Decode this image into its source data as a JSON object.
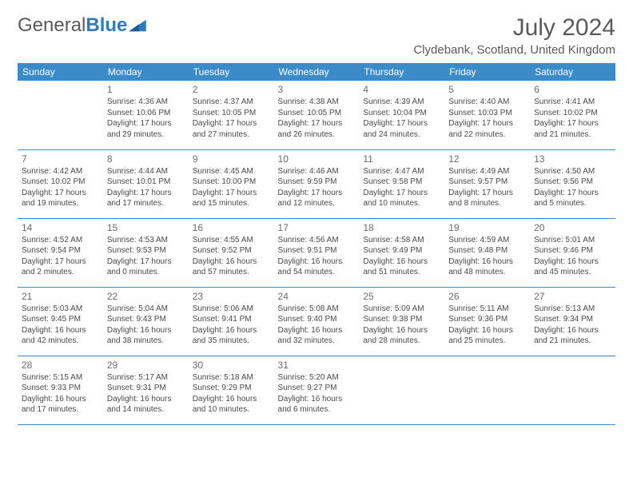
{
  "logo": {
    "part1": "General",
    "part2": "Blue"
  },
  "title": "July 2024",
  "location": "Clydebank, Scotland, United Kingdom",
  "colors": {
    "header_bg": "#3b8bc9",
    "header_text": "#ffffff",
    "border": "#3b8bc9",
    "text": "#4a4a4a",
    "title_text": "#5a5a5a",
    "logo_blue": "#2f7bbf"
  },
  "weekdays": [
    "Sunday",
    "Monday",
    "Tuesday",
    "Wednesday",
    "Thursday",
    "Friday",
    "Saturday"
  ],
  "weeks": [
    [
      {
        "day": "",
        "sunrise": "",
        "sunset": "",
        "daylight1": "",
        "daylight2": ""
      },
      {
        "day": "1",
        "sunrise": "Sunrise: 4:36 AM",
        "sunset": "Sunset: 10:06 PM",
        "daylight1": "Daylight: 17 hours",
        "daylight2": "and 29 minutes."
      },
      {
        "day": "2",
        "sunrise": "Sunrise: 4:37 AM",
        "sunset": "Sunset: 10:05 PM",
        "daylight1": "Daylight: 17 hours",
        "daylight2": "and 27 minutes."
      },
      {
        "day": "3",
        "sunrise": "Sunrise: 4:38 AM",
        "sunset": "Sunset: 10:05 PM",
        "daylight1": "Daylight: 17 hours",
        "daylight2": "and 26 minutes."
      },
      {
        "day": "4",
        "sunrise": "Sunrise: 4:39 AM",
        "sunset": "Sunset: 10:04 PM",
        "daylight1": "Daylight: 17 hours",
        "daylight2": "and 24 minutes."
      },
      {
        "day": "5",
        "sunrise": "Sunrise: 4:40 AM",
        "sunset": "Sunset: 10:03 PM",
        "daylight1": "Daylight: 17 hours",
        "daylight2": "and 22 minutes."
      },
      {
        "day": "6",
        "sunrise": "Sunrise: 4:41 AM",
        "sunset": "Sunset: 10:02 PM",
        "daylight1": "Daylight: 17 hours",
        "daylight2": "and 21 minutes."
      }
    ],
    [
      {
        "day": "7",
        "sunrise": "Sunrise: 4:42 AM",
        "sunset": "Sunset: 10:02 PM",
        "daylight1": "Daylight: 17 hours",
        "daylight2": "and 19 minutes."
      },
      {
        "day": "8",
        "sunrise": "Sunrise: 4:44 AM",
        "sunset": "Sunset: 10:01 PM",
        "daylight1": "Daylight: 17 hours",
        "daylight2": "and 17 minutes."
      },
      {
        "day": "9",
        "sunrise": "Sunrise: 4:45 AM",
        "sunset": "Sunset: 10:00 PM",
        "daylight1": "Daylight: 17 hours",
        "daylight2": "and 15 minutes."
      },
      {
        "day": "10",
        "sunrise": "Sunrise: 4:46 AM",
        "sunset": "Sunset: 9:59 PM",
        "daylight1": "Daylight: 17 hours",
        "daylight2": "and 12 minutes."
      },
      {
        "day": "11",
        "sunrise": "Sunrise: 4:47 AM",
        "sunset": "Sunset: 9:58 PM",
        "daylight1": "Daylight: 17 hours",
        "daylight2": "and 10 minutes."
      },
      {
        "day": "12",
        "sunrise": "Sunrise: 4:49 AM",
        "sunset": "Sunset: 9:57 PM",
        "daylight1": "Daylight: 17 hours",
        "daylight2": "and 8 minutes."
      },
      {
        "day": "13",
        "sunrise": "Sunrise: 4:50 AM",
        "sunset": "Sunset: 9:56 PM",
        "daylight1": "Daylight: 17 hours",
        "daylight2": "and 5 minutes."
      }
    ],
    [
      {
        "day": "14",
        "sunrise": "Sunrise: 4:52 AM",
        "sunset": "Sunset: 9:54 PM",
        "daylight1": "Daylight: 17 hours",
        "daylight2": "and 2 minutes."
      },
      {
        "day": "15",
        "sunrise": "Sunrise: 4:53 AM",
        "sunset": "Sunset: 9:53 PM",
        "daylight1": "Daylight: 17 hours",
        "daylight2": "and 0 minutes."
      },
      {
        "day": "16",
        "sunrise": "Sunrise: 4:55 AM",
        "sunset": "Sunset: 9:52 PM",
        "daylight1": "Daylight: 16 hours",
        "daylight2": "and 57 minutes."
      },
      {
        "day": "17",
        "sunrise": "Sunrise: 4:56 AM",
        "sunset": "Sunset: 9:51 PM",
        "daylight1": "Daylight: 16 hours",
        "daylight2": "and 54 minutes."
      },
      {
        "day": "18",
        "sunrise": "Sunrise: 4:58 AM",
        "sunset": "Sunset: 9:49 PM",
        "daylight1": "Daylight: 16 hours",
        "daylight2": "and 51 minutes."
      },
      {
        "day": "19",
        "sunrise": "Sunrise: 4:59 AM",
        "sunset": "Sunset: 9:48 PM",
        "daylight1": "Daylight: 16 hours",
        "daylight2": "and 48 minutes."
      },
      {
        "day": "20",
        "sunrise": "Sunrise: 5:01 AM",
        "sunset": "Sunset: 9:46 PM",
        "daylight1": "Daylight: 16 hours",
        "daylight2": "and 45 minutes."
      }
    ],
    [
      {
        "day": "21",
        "sunrise": "Sunrise: 5:03 AM",
        "sunset": "Sunset: 9:45 PM",
        "daylight1": "Daylight: 16 hours",
        "daylight2": "and 42 minutes."
      },
      {
        "day": "22",
        "sunrise": "Sunrise: 5:04 AM",
        "sunset": "Sunset: 9:43 PM",
        "daylight1": "Daylight: 16 hours",
        "daylight2": "and 38 minutes."
      },
      {
        "day": "23",
        "sunrise": "Sunrise: 5:06 AM",
        "sunset": "Sunset: 9:41 PM",
        "daylight1": "Daylight: 16 hours",
        "daylight2": "and 35 minutes."
      },
      {
        "day": "24",
        "sunrise": "Sunrise: 5:08 AM",
        "sunset": "Sunset: 9:40 PM",
        "daylight1": "Daylight: 16 hours",
        "daylight2": "and 32 minutes."
      },
      {
        "day": "25",
        "sunrise": "Sunrise: 5:09 AM",
        "sunset": "Sunset: 9:38 PM",
        "daylight1": "Daylight: 16 hours",
        "daylight2": "and 28 minutes."
      },
      {
        "day": "26",
        "sunrise": "Sunrise: 5:11 AM",
        "sunset": "Sunset: 9:36 PM",
        "daylight1": "Daylight: 16 hours",
        "daylight2": "and 25 minutes."
      },
      {
        "day": "27",
        "sunrise": "Sunrise: 5:13 AM",
        "sunset": "Sunset: 9:34 PM",
        "daylight1": "Daylight: 16 hours",
        "daylight2": "and 21 minutes."
      }
    ],
    [
      {
        "day": "28",
        "sunrise": "Sunrise: 5:15 AM",
        "sunset": "Sunset: 9:33 PM",
        "daylight1": "Daylight: 16 hours",
        "daylight2": "and 17 minutes."
      },
      {
        "day": "29",
        "sunrise": "Sunrise: 5:17 AM",
        "sunset": "Sunset: 9:31 PM",
        "daylight1": "Daylight: 16 hours",
        "daylight2": "and 14 minutes."
      },
      {
        "day": "30",
        "sunrise": "Sunrise: 5:18 AM",
        "sunset": "Sunset: 9:29 PM",
        "daylight1": "Daylight: 16 hours",
        "daylight2": "and 10 minutes."
      },
      {
        "day": "31",
        "sunrise": "Sunrise: 5:20 AM",
        "sunset": "Sunset: 9:27 PM",
        "daylight1": "Daylight: 16 hours",
        "daylight2": "and 6 minutes."
      },
      {
        "day": "",
        "sunrise": "",
        "sunset": "",
        "daylight1": "",
        "daylight2": ""
      },
      {
        "day": "",
        "sunrise": "",
        "sunset": "",
        "daylight1": "",
        "daylight2": ""
      },
      {
        "day": "",
        "sunrise": "",
        "sunset": "",
        "daylight1": "",
        "daylight2": ""
      }
    ]
  ]
}
